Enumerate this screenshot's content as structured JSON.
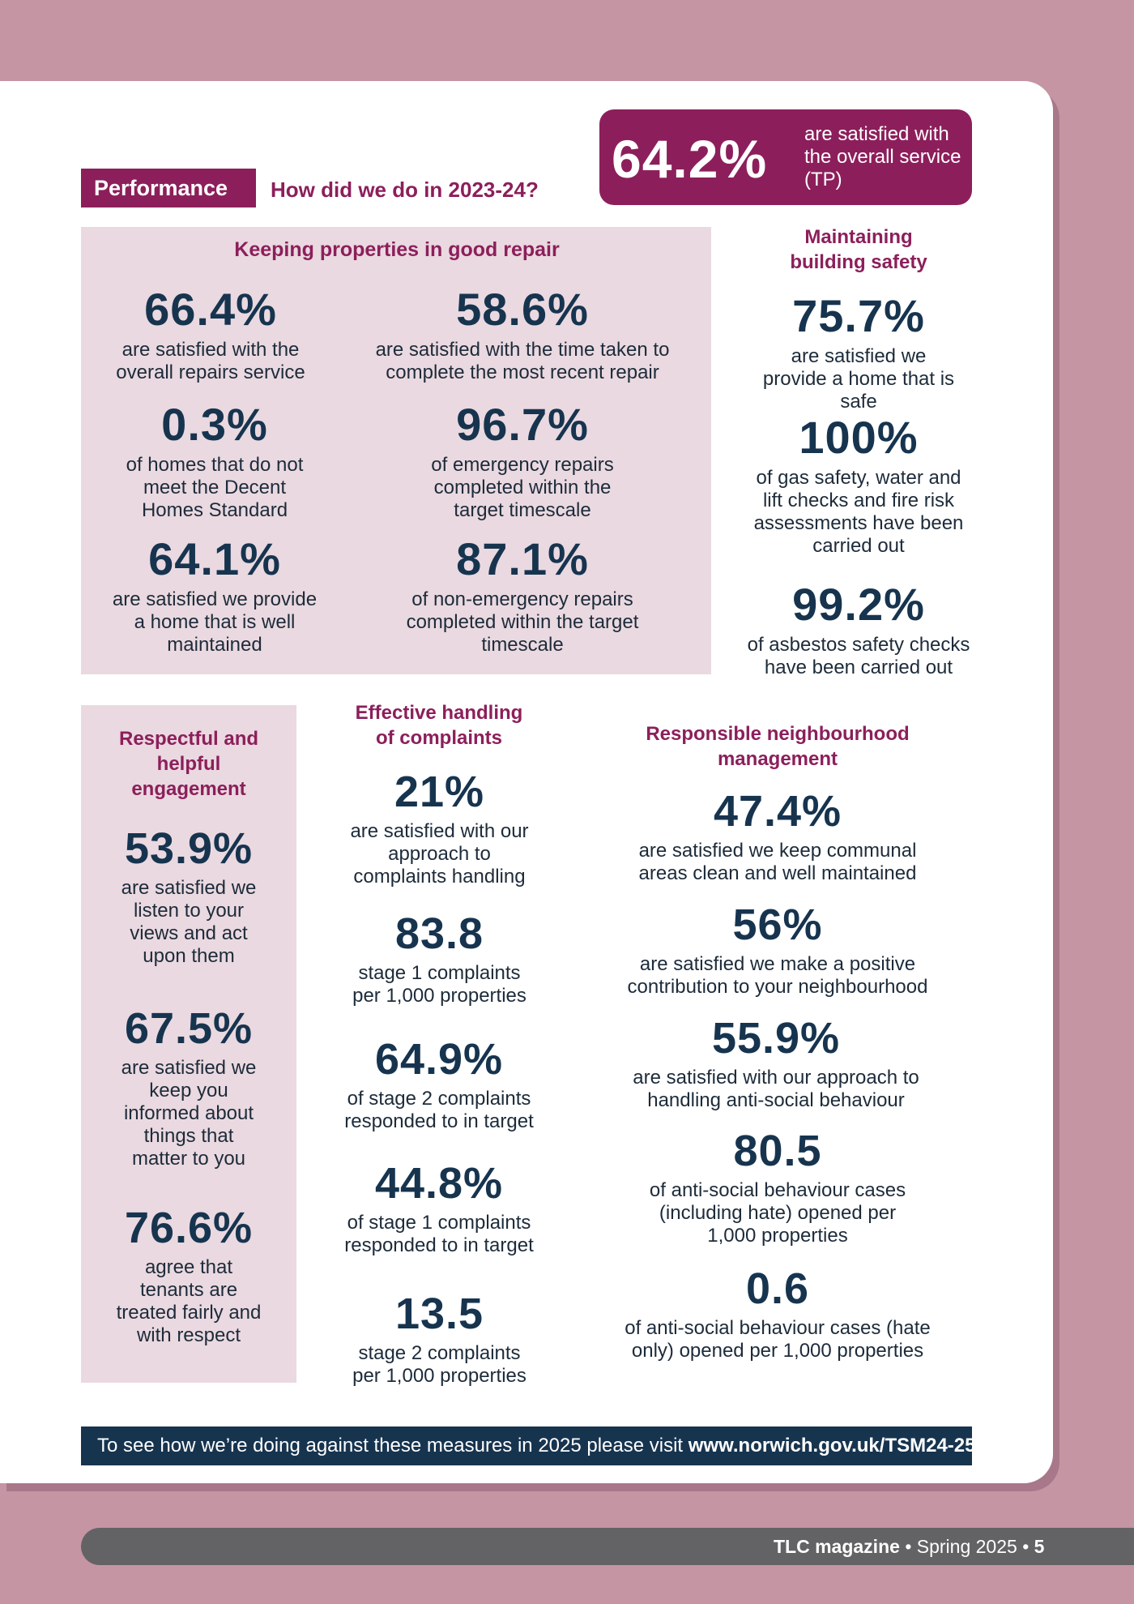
{
  "header": {
    "section_label": "Performance",
    "subtitle": "How did we do in 2023-24?",
    "overall_value": "64.2%",
    "overall_text": "are satisfied with the overall service (TP)"
  },
  "repair": {
    "heading": "Keeping properties in good repair",
    "s1": {
      "value": "66.4%",
      "text": "are satisfied with the overall repairs service"
    },
    "s2": {
      "value": "58.6%",
      "text": "are satisfied with the time taken to complete the most recent repair"
    },
    "s3": {
      "value": "0.3%",
      "text": "of homes that do not meet the Decent Homes Standard"
    },
    "s4": {
      "value": "96.7%",
      "text": "of emergency repairs completed within the target timescale"
    },
    "s5": {
      "value": "64.1%",
      "text": "are satisfied we provide a home that is well maintained"
    },
    "s6": {
      "value": "87.1%",
      "text": "of non-emergency repairs completed within the target timescale"
    }
  },
  "safety": {
    "heading": "Maintaining building safety",
    "s1": {
      "value": "75.7%",
      "text": "are satisfied we provide a home that is safe"
    },
    "s2": {
      "value": "100%",
      "text": "of gas safety, water and lift checks and fire risk assessments have been carried out"
    },
    "s3": {
      "value": "99.2%",
      "text": "of asbestos safety checks have been carried out"
    }
  },
  "engagement": {
    "heading": "Respectful and helpful engagement",
    "s1": {
      "value": "53.9%",
      "text": "are satisfied we listen to your views and act upon them"
    },
    "s2": {
      "value": "67.5%",
      "text": "are satisfied we keep you informed about things that matter to you"
    },
    "s3": {
      "value": "76.6%",
      "text": "agree that tenants are treated fairly and with respect"
    }
  },
  "complaints": {
    "heading": "Effective handling of complaints",
    "s1": {
      "value": "21%",
      "text": "are satisfied with our approach to complaints handling"
    },
    "s2": {
      "value": "83.8",
      "text": "stage 1 complaints per 1,000 properties"
    },
    "s3": {
      "value": "64.9%",
      "text": "of stage 2 complaints responded to in target"
    },
    "s4": {
      "value": "44.8%",
      "text": "of stage 1 complaints responded to in target"
    },
    "s5": {
      "value": "13.5",
      "text": "stage 2 complaints per 1,000 properties"
    }
  },
  "neighbourhood": {
    "heading": "Responsible neighbourhood management",
    "s1": {
      "value": "47.4%",
      "text": "are satisfied we keep communal areas clean and well maintained"
    },
    "s2": {
      "value": "56%",
      "text": "are satisfied we make a positive contribution to your neighbourhood"
    },
    "s3": {
      "value": "55.9%",
      "text": "are satisfied with our approach to handling anti-social behaviour"
    },
    "s4": {
      "value": "80.5",
      "text": "of anti-social behaviour cases (including hate) opened per 1,000 properties"
    },
    "s5": {
      "value": "0.6",
      "text": "of anti-social behaviour cases (hate only) opened per 1,000 properties"
    }
  },
  "footer_banner": {
    "text": "To see how we’re doing against these measures in 2025 please visit ",
    "link": "www.norwich.gov.uk/TSM24-25"
  },
  "bottom_bar": {
    "magazine": "TLC magazine",
    "issue": "Spring 2025",
    "page": "5",
    "sep": "•"
  },
  "colors": {
    "accent": "#8c1f5b",
    "navy": "#17344f",
    "panel": "#ead9e0",
    "bg": "#c595a4"
  }
}
